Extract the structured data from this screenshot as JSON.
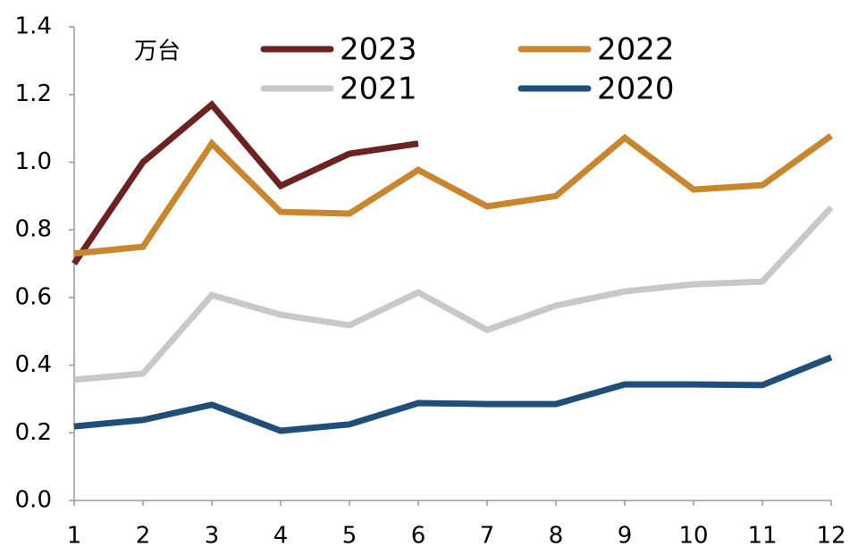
{
  "chart_data": {
    "type": "line",
    "ylabel": "万台",
    "categories": [
      "1",
      "2",
      "3",
      "4",
      "5",
      "6",
      "7",
      "8",
      "9",
      "10",
      "11",
      "12"
    ],
    "series": [
      {
        "name": "2023",
        "color": "#6b2220",
        "values": [
          0.7,
          1.0,
          1.17,
          0.93,
          1.025,
          1.055,
          null,
          null,
          null,
          null,
          null,
          null
        ]
      },
      {
        "name": "2022",
        "color": "#c8862f",
        "values": [
          0.73,
          0.75,
          1.055,
          0.853,
          0.848,
          0.977,
          0.869,
          0.9,
          1.072,
          0.919,
          0.932,
          1.078
        ]
      },
      {
        "name": "2021",
        "color": "#c8c8c8",
        "values": [
          0.357,
          0.375,
          0.607,
          0.549,
          0.518,
          0.615,
          0.504,
          0.576,
          0.618,
          0.639,
          0.647,
          0.866
        ]
      },
      {
        "name": "2020",
        "color": "#1f4e79",
        "values": [
          0.219,
          0.238,
          0.283,
          0.206,
          0.225,
          0.288,
          0.285,
          0.285,
          0.343,
          0.343,
          0.341,
          0.423
        ]
      }
    ],
    "ylim": [
      0,
      1.4
    ],
    "yticks": [
      {
        "value": 0,
        "label": "0.0"
      },
      0.2,
      0.4,
      0.6,
      0.8,
      {
        "value": 1,
        "label": "1.0"
      },
      1.2,
      1.4
    ],
    "grid": false
  }
}
